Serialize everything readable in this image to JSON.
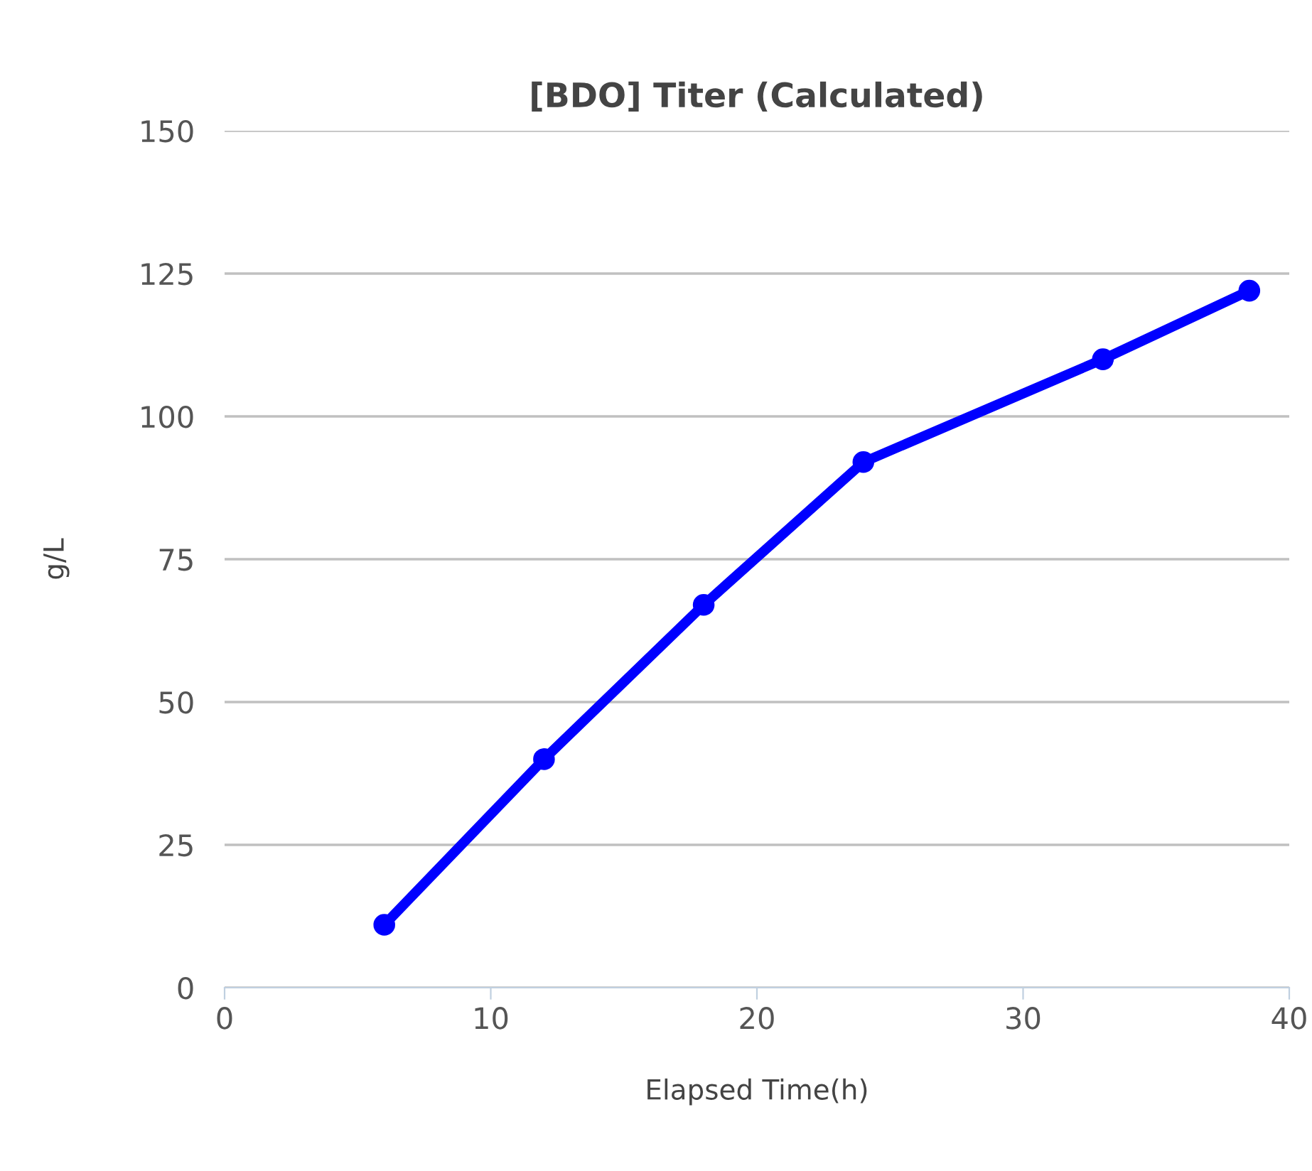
{
  "chart_data": {
    "type": "line",
    "title": "[BDO] Titer (Calculated)",
    "xlabel": "Elapsed Time(h)",
    "ylabel": "g/L",
    "x": [
      6,
      12,
      18,
      24,
      33,
      38.5
    ],
    "series": [
      {
        "color": "#0000ff",
        "values": [
          11,
          40,
          67,
          92,
          110,
          122
        ]
      }
    ],
    "xlim": [
      0,
      40
    ],
    "xticks": [
      0,
      10,
      20,
      30,
      40
    ],
    "ylim": [
      0,
      150
    ],
    "yticks": [
      0,
      25,
      50,
      75,
      100,
      125,
      150
    ],
    "grid": "y",
    "marker": "circle",
    "line_style": "solid"
  }
}
